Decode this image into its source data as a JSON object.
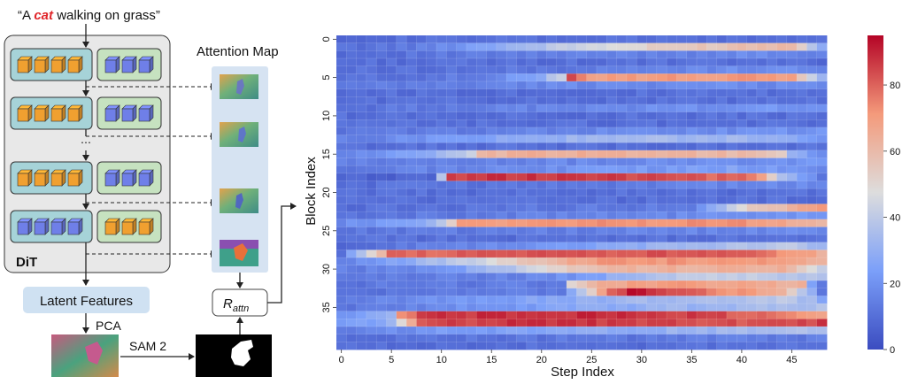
{
  "diagram": {
    "prompt": {
      "open": "“A ",
      "highlight": "cat",
      "rest": " walking on grass”"
    },
    "dit_label": "DiT",
    "attention_map_title": "Attention Map",
    "latent_features_label": "Latent Features",
    "pca_label": "PCA",
    "sam_label": "SAM 2",
    "rattn_main": "R",
    "rattn_sub": "attn",
    "colors": {
      "highlight": "#e0262a",
      "dit_panel": "#e8e8e8",
      "teal_box": "#a6d3d8",
      "green_box": "#c6e2c0",
      "orange_cube": "#f0a030",
      "blue_cube": "#6f7fe8",
      "attention_panel": "#d6e3f2",
      "latent_box": "#cfe1f2"
    }
  },
  "chart_data": {
    "type": "heatmap",
    "xlabel": "Step Index",
    "ylabel": "Block Index",
    "x_ticks": [
      "0",
      "5",
      "10",
      "15",
      "20",
      "25",
      "30",
      "35",
      "40",
      "45"
    ],
    "y_ticks": [
      "0",
      "5",
      "10",
      "15",
      "20",
      "25",
      "30",
      "35"
    ],
    "n_cols": 49,
    "n_rows": 41,
    "colorbar_ticks": [
      "0",
      "20",
      "40",
      "60",
      "80"
    ],
    "value_range": [
      0,
      95
    ],
    "background_value": 10,
    "row_profiles": [
      {
        "row": 1,
        "points": [
          [
            0,
            10
          ],
          [
            8,
            14
          ],
          [
            15,
            28
          ],
          [
            25,
            45
          ],
          [
            35,
            55
          ],
          [
            45,
            62
          ],
          [
            48,
            30
          ]
        ]
      },
      {
        "row": 2,
        "points": [
          [
            0,
            10
          ],
          [
            20,
            14
          ],
          [
            45,
            18
          ],
          [
            48,
            14
          ]
        ]
      },
      {
        "row": 4,
        "points": [
          [
            0,
            10
          ],
          [
            20,
            12
          ],
          [
            45,
            20
          ],
          [
            48,
            14
          ]
        ]
      },
      {
        "row": 5,
        "points": [
          [
            0,
            10
          ],
          [
            15,
            14
          ],
          [
            20,
            30
          ],
          [
            22,
            45
          ],
          [
            23,
            85
          ],
          [
            25,
            70
          ],
          [
            35,
            70
          ],
          [
            45,
            70
          ],
          [
            48,
            30
          ]
        ]
      },
      {
        "row": 6,
        "points": [
          [
            0,
            12
          ],
          [
            25,
            18
          ],
          [
            48,
            18
          ]
        ]
      },
      {
        "row": 9,
        "points": [
          [
            0,
            10
          ],
          [
            10,
            14
          ],
          [
            48,
            22
          ]
        ]
      },
      {
        "row": 12,
        "points": [
          [
            0,
            12
          ],
          [
            20,
            16
          ],
          [
            48,
            20
          ]
        ]
      },
      {
        "row": 13,
        "points": [
          [
            0,
            14
          ],
          [
            10,
            22
          ],
          [
            20,
            30
          ],
          [
            30,
            34
          ],
          [
            40,
            32
          ],
          [
            48,
            22
          ]
        ]
      },
      {
        "row": 15,
        "points": [
          [
            0,
            16
          ],
          [
            8,
            26
          ],
          [
            13,
            40
          ],
          [
            14,
            60
          ],
          [
            20,
            64
          ],
          [
            30,
            64
          ],
          [
            40,
            60
          ],
          [
            44,
            55
          ],
          [
            45,
            30
          ],
          [
            48,
            16
          ]
        ]
      },
      {
        "row": 16,
        "points": [
          [
            0,
            14
          ],
          [
            48,
            20
          ]
        ]
      },
      {
        "row": 17,
        "points": [
          [
            0,
            12
          ],
          [
            10,
            16
          ],
          [
            40,
            25
          ],
          [
            48,
            16
          ]
        ]
      },
      {
        "row": 18,
        "points": [
          [
            0,
            6
          ],
          [
            9,
            8
          ],
          [
            10,
            40
          ],
          [
            11,
            85
          ],
          [
            18,
            88
          ],
          [
            30,
            84
          ],
          [
            40,
            78
          ],
          [
            42,
            68
          ],
          [
            44,
            36
          ],
          [
            48,
            12
          ]
        ]
      },
      {
        "row": 19,
        "points": [
          [
            0,
            10
          ],
          [
            30,
            14
          ],
          [
            48,
            18
          ]
        ]
      },
      {
        "row": 22,
        "points": [
          [
            0,
            10
          ],
          [
            35,
            14
          ],
          [
            40,
            50
          ],
          [
            48,
            70
          ]
        ]
      },
      {
        "row": 23,
        "points": [
          [
            0,
            12
          ],
          [
            30,
            16
          ],
          [
            48,
            22
          ]
        ]
      },
      {
        "row": 24,
        "points": [
          [
            0,
            18
          ],
          [
            8,
            26
          ],
          [
            10,
            38
          ],
          [
            12,
            70
          ],
          [
            25,
            72
          ],
          [
            40,
            72
          ],
          [
            48,
            62
          ]
        ]
      },
      {
        "row": 25,
        "points": [
          [
            0,
            12
          ],
          [
            48,
            18
          ]
        ]
      },
      {
        "row": 27,
        "points": [
          [
            0,
            10
          ],
          [
            20,
            20
          ],
          [
            30,
            30
          ],
          [
            45,
            40
          ],
          [
            48,
            30
          ]
        ]
      },
      {
        "row": 28,
        "points": [
          [
            0,
            12
          ],
          [
            4,
            60
          ],
          [
            5,
            78
          ],
          [
            15,
            82
          ],
          [
            30,
            82
          ],
          [
            40,
            80
          ],
          [
            48,
            65
          ]
        ]
      },
      {
        "row": 29,
        "points": [
          [
            0,
            16
          ],
          [
            5,
            24
          ],
          [
            15,
            48
          ],
          [
            25,
            70
          ],
          [
            35,
            72
          ],
          [
            45,
            70
          ],
          [
            48,
            60
          ]
        ]
      },
      {
        "row": 30,
        "points": [
          [
            0,
            14
          ],
          [
            10,
            20
          ],
          [
            20,
            46
          ],
          [
            25,
            60
          ],
          [
            35,
            64
          ],
          [
            45,
            62
          ],
          [
            48,
            40
          ]
        ]
      },
      {
        "row": 31,
        "points": [
          [
            0,
            12
          ],
          [
            20,
            16
          ],
          [
            28,
            30
          ],
          [
            35,
            42
          ],
          [
            48,
            38
          ]
        ]
      },
      {
        "row": 32,
        "points": [
          [
            0,
            12
          ],
          [
            22,
            14
          ],
          [
            23,
            50
          ],
          [
            26,
            66
          ],
          [
            32,
            70
          ],
          [
            40,
            68
          ],
          [
            46,
            62
          ],
          [
            47,
            24
          ],
          [
            48,
            14
          ]
        ]
      },
      {
        "row": 33,
        "points": [
          [
            0,
            12
          ],
          [
            22,
            14
          ],
          [
            24,
            40
          ],
          [
            27,
            78
          ],
          [
            29,
            95
          ],
          [
            32,
            84
          ],
          [
            38,
            74
          ],
          [
            44,
            64
          ],
          [
            46,
            40
          ],
          [
            48,
            14
          ]
        ]
      },
      {
        "row": 34,
        "points": [
          [
            0,
            14
          ],
          [
            15,
            22
          ],
          [
            30,
            34
          ],
          [
            45,
            40
          ],
          [
            48,
            28
          ]
        ]
      },
      {
        "row": 35,
        "points": [
          [
            0,
            12
          ],
          [
            10,
            18
          ],
          [
            30,
            30
          ],
          [
            48,
            36
          ]
        ]
      },
      {
        "row": 36,
        "points": [
          [
            0,
            18
          ],
          [
            5,
            30
          ],
          [
            6,
            70
          ],
          [
            8,
            86
          ],
          [
            20,
            90
          ],
          [
            35,
            86
          ],
          [
            45,
            76
          ],
          [
            48,
            70
          ]
        ]
      },
      {
        "row": 37,
        "points": [
          [
            0,
            20
          ],
          [
            5,
            30
          ],
          [
            7,
            62
          ],
          [
            8,
            84
          ],
          [
            20,
            88
          ],
          [
            35,
            84
          ],
          [
            45,
            82
          ],
          [
            48,
            86
          ]
        ]
      },
      {
        "row": 38,
        "points": [
          [
            0,
            14
          ],
          [
            10,
            22
          ],
          [
            30,
            30
          ],
          [
            48,
            36
          ]
        ]
      },
      {
        "row": 39,
        "points": [
          [
            0,
            10
          ],
          [
            48,
            14
          ]
        ]
      }
    ]
  }
}
